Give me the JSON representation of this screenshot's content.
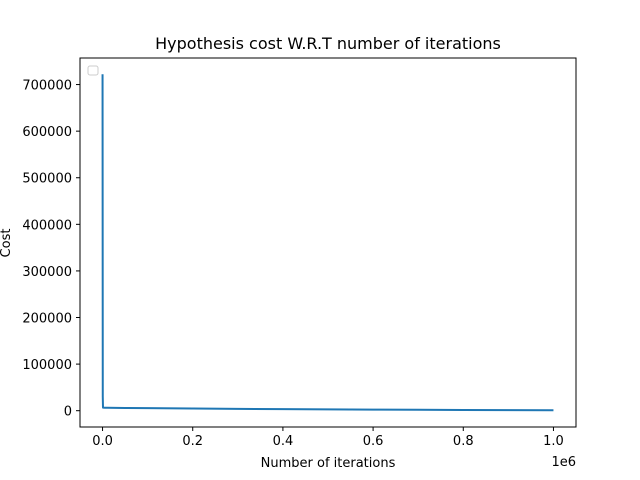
{
  "chart_data": {
    "type": "line",
    "title": "Hypothesis cost W.R.T number of iterations",
    "xlabel": "Number of iterations",
    "ylabel": "Cost",
    "x_offset_label": "1e6",
    "xlim": [
      -50000,
      1050000
    ],
    "ylim": [
      -35000,
      757000
    ],
    "grid": false,
    "legend": {
      "placement": "upper-left",
      "entries": []
    },
    "x_ticks": [
      {
        "value": 0,
        "label": "0.0"
      },
      {
        "value": 200000,
        "label": "0.2"
      },
      {
        "value": 400000,
        "label": "0.4"
      },
      {
        "value": 600000,
        "label": "0.6"
      },
      {
        "value": 800000,
        "label": "0.8"
      },
      {
        "value": 1000000,
        "label": "1.0"
      }
    ],
    "y_ticks": [
      {
        "value": 0,
        "label": "0"
      },
      {
        "value": 100000,
        "label": "100000"
      },
      {
        "value": 200000,
        "label": "200000"
      },
      {
        "value": 300000,
        "label": "300000"
      },
      {
        "value": 400000,
        "label": "400000"
      },
      {
        "value": 500000,
        "label": "500000"
      },
      {
        "value": 600000,
        "label": "600000"
      },
      {
        "value": 700000,
        "label": "700000"
      }
    ],
    "series": [
      {
        "color": "#1f77b4",
        "x": [
          0,
          500,
          1000,
          5000,
          10000,
          50000,
          100000,
          200000,
          300000,
          400000,
          500000,
          600000,
          700000,
          800000,
          900000,
          1000000
        ],
        "y": [
          722000,
          30000,
          6500,
          6300,
          6200,
          5800,
          5400,
          4600,
          3900,
          3300,
          2800,
          2300,
          1900,
          1500,
          1200,
          900
        ]
      }
    ]
  }
}
